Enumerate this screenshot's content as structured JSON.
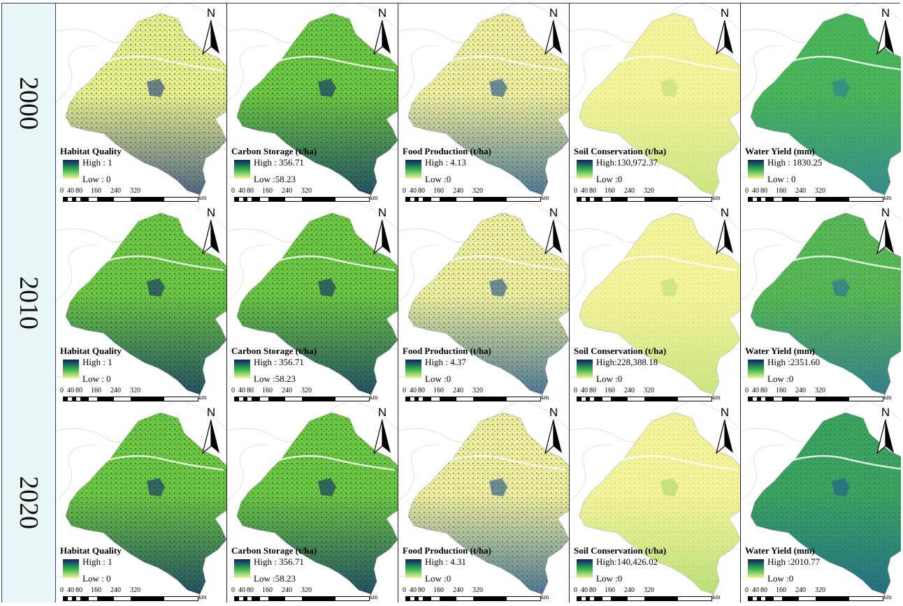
{
  "years": [
    "2000",
    "2010",
    "2020"
  ],
  "service_titles": [
    "Habitat Quality",
    "Carbon Storage (t/ha)",
    "Food Production (t/ha)",
    "Soil Conservation (t/ha)",
    "Water Yield (mm)"
  ],
  "north_label": "N",
  "scale": {
    "ticks": [
      "0",
      "40",
      "80",
      "160",
      "240",
      "320"
    ],
    "unit": "km"
  },
  "colors": {
    "high": "#0d1f6e",
    "mid": "#2fb04a",
    "low": "#f5f59a",
    "year_cell_bg": "#e9f6f8",
    "border": "#2a3f6a"
  },
  "grid": [
    [
      {
        "high": "High : 1",
        "low": "Low : 0",
        "dominant": "#e8ee88",
        "secondary": "#1e3a7a"
      },
      {
        "high": "High : 356.71",
        "low": "Low :58.23",
        "dominant": "#6cc63e",
        "secondary": "#0d2a6a"
      },
      {
        "high": "High : 4.13",
        "low": "Low :0",
        "dominant": "#f0ee98",
        "secondary": "#1a4f8a"
      },
      {
        "high": "High:130,972.37",
        "low": "Low :0",
        "dominant": "#f5f29c",
        "secondary": "#bde07a"
      },
      {
        "high": "High : 1830.25",
        "low": "Low : 0",
        "dominant": "#4ab555",
        "secondary": "#2f7f9a"
      }
    ],
    [
      {
        "high": "High : 1",
        "low": "Low : 0",
        "dominant": "#6cc63e",
        "secondary": "#0d2a6a"
      },
      {
        "high": "High : 356.71",
        "low": "Low :58.23",
        "dominant": "#6cc63e",
        "secondary": "#0d2a6a"
      },
      {
        "high": "High : 4.37",
        "low": "Low :0",
        "dominant": "#f0ee98",
        "secondary": "#1a4f8a"
      },
      {
        "high": "High:228,388.18",
        "low": "Low :0",
        "dominant": "#f5f29c",
        "secondary": "#bde07a"
      },
      {
        "high": "High :2351.60",
        "low": "Low :0",
        "dominant": "#56b84e",
        "secondary": "#2a6f9a"
      }
    ],
    [
      {
        "high": "High : 1",
        "low": "Low : 0",
        "dominant": "#6cc63e",
        "secondary": "#0d2a6a"
      },
      {
        "high": "High : 356.71",
        "low": "Low :58.23",
        "dominant": "#6cc63e",
        "secondary": "#0d2a6a"
      },
      {
        "high": "High : 4.31",
        "low": "Low :0",
        "dominant": "#f0ee98",
        "secondary": "#1a4f8a"
      },
      {
        "high": "High:140,426.02",
        "low": "Low :0",
        "dominant": "#f5f29c",
        "secondary": "#a8d86e"
      },
      {
        "high": "High :2010.77",
        "low": "Low :0",
        "dominant": "#3ca35a",
        "secondary": "#1e5f92"
      }
    ]
  ]
}
